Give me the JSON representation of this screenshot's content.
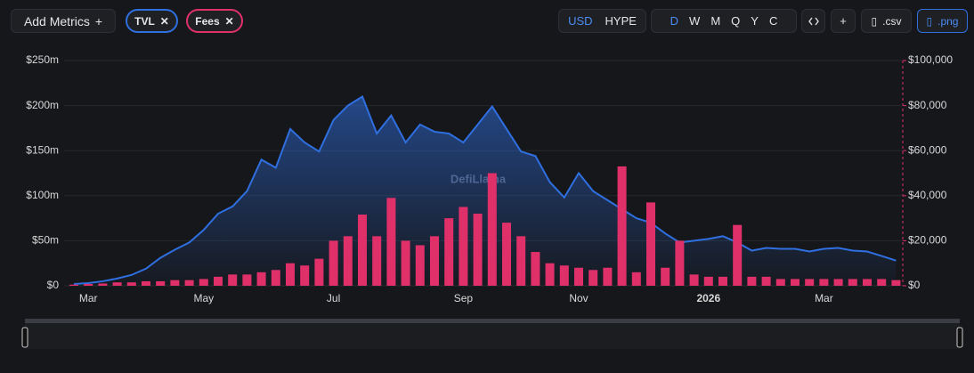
{
  "controls": {
    "add_metrics": "Add Metrics",
    "currencies": [
      "USD",
      "HYPE"
    ],
    "intervals": [
      "D",
      "W",
      "M",
      "Q",
      "Y",
      "C"
    ],
    "exports": [
      ".csv",
      ".png"
    ]
  },
  "watermark": "DefiLlama",
  "chart_data": {
    "type": "bar-line",
    "categories": [
      null,
      "Mar",
      null,
      null,
      null,
      null,
      null,
      null,
      null,
      "May",
      null,
      null,
      null,
      null,
      null,
      null,
      null,
      null,
      "Jul",
      null,
      null,
      null,
      null,
      null,
      null,
      null,
      null,
      "Sep",
      null,
      null,
      null,
      null,
      null,
      null,
      null,
      "Nov",
      null,
      null,
      null,
      null,
      null,
      null,
      null,
      null,
      "2026",
      null,
      null,
      null,
      null,
      null,
      null,
      null,
      "Mar",
      null,
      null,
      null,
      null,
      null
    ],
    "series": [
      {
        "name": "TVL",
        "color": "#2f6fe0",
        "axis": "y",
        "values": [
          2,
          3,
          5,
          8,
          12,
          19,
          31,
          40,
          48,
          62,
          80,
          88,
          105,
          140,
          131,
          174,
          159,
          149,
          184,
          200,
          210,
          169,
          189,
          159,
          179,
          171,
          169,
          159,
          179,
          199,
          174,
          149,
          144,
          115,
          98,
          125,
          105,
          95,
          85,
          75,
          70,
          58,
          48,
          50,
          52,
          55,
          48,
          39,
          42,
          41,
          41,
          38,
          41,
          42,
          39,
          38,
          33,
          28
        ]
      },
      {
        "name": "Fees",
        "color": "#e0306a",
        "axis": "y2",
        "values": [
          500,
          800,
          1000,
          1500,
          1500,
          2000,
          2000,
          2500,
          2500,
          3000,
          4000,
          5000,
          5000,
          6000,
          7000,
          10000,
          9000,
          12000,
          20000,
          22000,
          31600,
          22000,
          39000,
          20000,
          18000,
          22000,
          30000,
          35000,
          32000,
          50000,
          28000,
          22000,
          15000,
          10000,
          9000,
          8000,
          7000,
          8000,
          53000,
          6000,
          37000,
          8000,
          20000,
          5000,
          4000,
          4000,
          27000,
          4000,
          4000,
          3000,
          3000,
          3000,
          3000,
          3000,
          3000,
          3000,
          3000,
          2500
        ]
      }
    ],
    "ylim": [
      0,
      250
    ],
    "yticks": [
      {
        "value": 0,
        "label": "$0"
      },
      {
        "value": 50,
        "label": "$50m"
      },
      {
        "value": 100,
        "label": "$100m"
      },
      {
        "value": 150,
        "label": "$150m"
      },
      {
        "value": 200,
        "label": "$200m"
      },
      {
        "value": 250,
        "label": "$250m"
      }
    ],
    "y2lim": [
      0,
      100000
    ],
    "y2ticks": [
      {
        "value": 0,
        "label": "$0"
      },
      {
        "value": 20000,
        "label": "$20,000"
      },
      {
        "value": 40000,
        "label": "$40,000"
      },
      {
        "value": 60000,
        "label": "$60,000"
      },
      {
        "value": 80000,
        "label": "$80,000"
      },
      {
        "value": 100000,
        "label": "$100,000"
      }
    ],
    "grid": true
  }
}
